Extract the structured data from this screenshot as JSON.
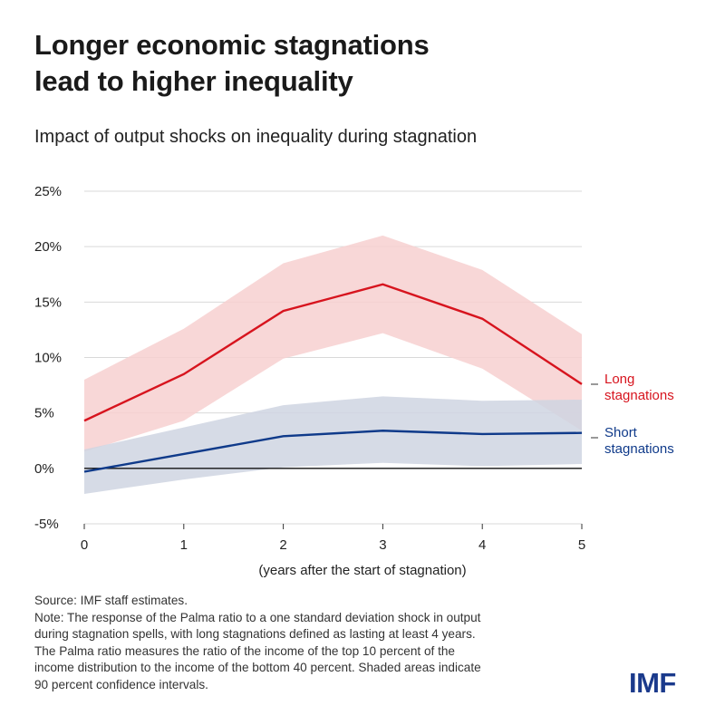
{
  "headline": [
    "Longer economic stagnations",
    "lead to higher inequality"
  ],
  "chart_data": {
    "type": "line",
    "title": "Impact of output shocks on inequality during stagnation",
    "xlabel": "(years after the start of stagnation)",
    "ylabel": "",
    "x": [
      0,
      1,
      2,
      3,
      4,
      5
    ],
    "xlim": [
      0,
      5
    ],
    "ylim": [
      -5,
      25
    ],
    "yticks": [
      -5,
      0,
      5,
      10,
      15,
      20,
      25
    ],
    "ytick_labels": [
      "-5%",
      "0%",
      "5%",
      "10%",
      "15%",
      "20%",
      "25%"
    ],
    "xtick_labels": [
      "0",
      "1",
      "2",
      "3",
      "4",
      "5"
    ],
    "grid": true,
    "series": [
      {
        "name": "Long stagnations",
        "label_lines": [
          "Long",
          "stagnations"
        ],
        "color": "#d7141e",
        "band_color": "#f7d0d0",
        "values": [
          4.3,
          8.5,
          14.2,
          16.6,
          13.5,
          7.6
        ],
        "upper": [
          8.0,
          12.6,
          18.5,
          21.0,
          17.9,
          12.1
        ],
        "lower": [
          1.5,
          4.3,
          9.9,
          12.2,
          9.0,
          3.4
        ]
      },
      {
        "name": "Short stagnations",
        "label_lines": [
          "Short",
          "stagnations"
        ],
        "color": "#0f3a8a",
        "band_color": "#cfd5e2",
        "values": [
          -0.3,
          1.3,
          2.9,
          3.4,
          3.1,
          3.2
        ],
        "upper": [
          1.7,
          3.7,
          5.7,
          6.5,
          6.1,
          6.2
        ],
        "lower": [
          -2.3,
          -1.0,
          0.1,
          0.5,
          0.2,
          0.4
        ]
      }
    ]
  },
  "footnote": {
    "source": "Source: IMF staff estimates.",
    "note_lines": [
      "Note: The response of the Palma ratio to a one standard deviation shock in output",
      "during stagnation spells, with long stagnations defined as lasting at least 4 years.",
      "The Palma ratio measures the ratio of the income of the top 10 percent of the",
      "income distribution to the income of the bottom 40 percent. Shaded areas indicate",
      "90 percent confidence intervals."
    ]
  },
  "logo": {
    "text": "IMF",
    "color": "#1b3a8c"
  },
  "colors": {
    "grid": "#d9d9d9",
    "zero_line": "#111111",
    "axis_text": "#222222"
  }
}
